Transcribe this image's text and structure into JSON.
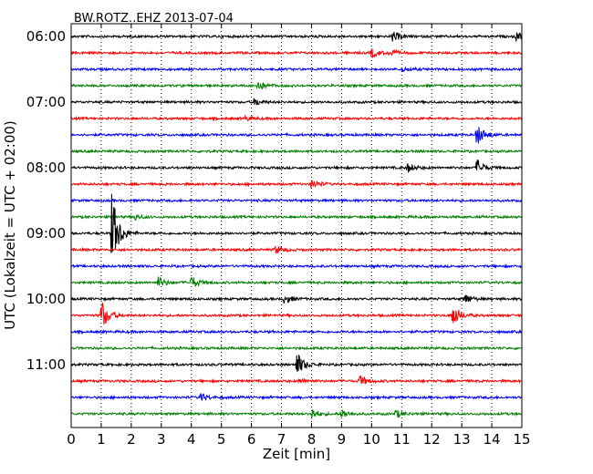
{
  "chart_data": {
    "type": "line",
    "title": "BW.ROTZ..EHZ 2013-07-04",
    "xlabel": "Zeit  [min]",
    "ylabel": "UTC (Lokalzeit = UTC + 02:00)",
    "xlim": [
      0,
      15
    ],
    "x_ticks": [
      "0",
      "1",
      "2",
      "3",
      "4",
      "5",
      "6",
      "7",
      "8",
      "9",
      "10",
      "11",
      "12",
      "13",
      "14",
      "15"
    ],
    "y_tick_labels": [
      "06:00",
      "07:00",
      "08:00",
      "09:00",
      "10:00",
      "11:00"
    ],
    "vertical_grid": "dotted",
    "trace_interval_minutes": 15,
    "colors": [
      "#000000",
      "#ff0000",
      "#0000ff",
      "#008000"
    ],
    "traces": [
      {
        "start": "06:00",
        "color": "#000000",
        "events": [
          {
            "t": 10.7,
            "amp": 0.35
          },
          {
            "t": 14.8,
            "amp": 0.3
          }
        ]
      },
      {
        "start": "06:15",
        "color": "#ff0000",
        "events": [
          {
            "t": 10.0,
            "amp": 0.3
          },
          {
            "t": 10.6,
            "amp": 0.2
          }
        ]
      },
      {
        "start": "06:30",
        "color": "#0000ff",
        "events": [
          {
            "t": 11.0,
            "amp": 0.15
          }
        ]
      },
      {
        "start": "06:45",
        "color": "#008000",
        "events": [
          {
            "t": 6.2,
            "amp": 0.35
          }
        ]
      },
      {
        "start": "07:00",
        "color": "#000000",
        "events": [
          {
            "t": 6.1,
            "amp": 0.25
          }
        ]
      },
      {
        "start": "07:15",
        "color": "#ff0000",
        "events": [
          {
            "t": 5.8,
            "amp": 0.15
          }
        ]
      },
      {
        "start": "07:30",
        "color": "#0000ff",
        "events": [
          {
            "t": 13.5,
            "amp": 0.7
          }
        ]
      },
      {
        "start": "07:45",
        "color": "#008000",
        "events": []
      },
      {
        "start": "08:00",
        "color": "#000000",
        "events": [
          {
            "t": 11.2,
            "amp": 0.3
          },
          {
            "t": 13.5,
            "amp": 0.55
          }
        ]
      },
      {
        "start": "08:15",
        "color": "#ff0000",
        "events": [
          {
            "t": 8.0,
            "amp": 0.3
          }
        ]
      },
      {
        "start": "08:30",
        "color": "#0000ff",
        "events": []
      },
      {
        "start": "08:45",
        "color": "#008000",
        "events": [
          {
            "t": 2.1,
            "amp": 0.2
          }
        ]
      },
      {
        "start": "09:00",
        "color": "#000000",
        "events": [
          {
            "t": 1.35,
            "amp": 2.5
          }
        ]
      },
      {
        "start": "09:15",
        "color": "#ff0000",
        "events": [
          {
            "t": 6.8,
            "amp": 0.25
          }
        ]
      },
      {
        "start": "09:30",
        "color": "#0000ff",
        "events": []
      },
      {
        "start": "09:45",
        "color": "#008000",
        "events": [
          {
            "t": 2.9,
            "amp": 0.35
          },
          {
            "t": 4.0,
            "amp": 0.4
          }
        ]
      },
      {
        "start": "10:00",
        "color": "#000000",
        "events": [
          {
            "t": 7.1,
            "amp": 0.3
          },
          {
            "t": 13.1,
            "amp": 0.35
          }
        ]
      },
      {
        "start": "10:15",
        "color": "#ff0000",
        "events": [
          {
            "t": 1.0,
            "amp": 1.0
          },
          {
            "t": 12.7,
            "amp": 0.75
          }
        ]
      },
      {
        "start": "10:30",
        "color": "#0000ff",
        "events": []
      },
      {
        "start": "10:45",
        "color": "#008000",
        "events": []
      },
      {
        "start": "11:00",
        "color": "#000000",
        "events": [
          {
            "t": 7.5,
            "amp": 0.8
          }
        ]
      },
      {
        "start": "11:15",
        "color": "#ff0000",
        "events": [
          {
            "t": 9.6,
            "amp": 0.35
          },
          {
            "t": 7.6,
            "amp": 0.15
          }
        ]
      },
      {
        "start": "11:30",
        "color": "#0000ff",
        "events": [
          {
            "t": 4.3,
            "amp": 0.3
          }
        ]
      },
      {
        "start": "11:45",
        "color": "#008000",
        "events": [
          {
            "t": 8.0,
            "amp": 0.35
          },
          {
            "t": 9.0,
            "amp": 0.3
          },
          {
            "t": 10.8,
            "amp": 0.25
          }
        ]
      }
    ]
  }
}
